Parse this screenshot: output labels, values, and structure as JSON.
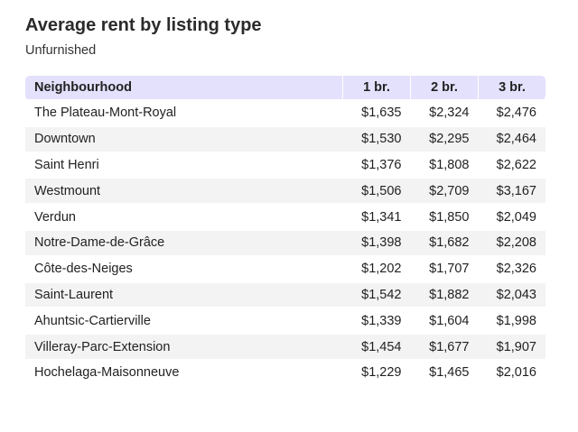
{
  "title": "Average rent by listing type",
  "subtitle": "Unfurnished",
  "chart_data": {
    "type": "table",
    "title": "Average rent by listing type",
    "subtitle": "Unfurnished",
    "columns": [
      "Neighbourhood",
      "1 br.",
      "2 br.",
      "3 br."
    ],
    "rows": [
      [
        "The Plateau-Mont-Royal",
        "$1,635",
        "$2,324",
        "$2,476"
      ],
      [
        "Downtown",
        "$1,530",
        "$2,295",
        "$2,464"
      ],
      [
        "Saint Henri",
        "$1,376",
        "$1,808",
        "$2,622"
      ],
      [
        "Westmount",
        "$1,506",
        "$2,709",
        "$3,167"
      ],
      [
        "Verdun",
        "$1,341",
        "$1,850",
        "$2,049"
      ],
      [
        "Notre-Dame-de-Grâce",
        "$1,398",
        "$1,682",
        "$2,208"
      ],
      [
        "Côte-des-Neiges",
        "$1,202",
        "$1,707",
        "$2,326"
      ],
      [
        "Saint-Laurent",
        "$1,542",
        "$1,882",
        "$2,043"
      ],
      [
        "Ahuntsic-Cartierville",
        "$1,339",
        "$1,604",
        "$1,998"
      ],
      [
        "Villeray-Parc-Extension",
        "$1,454",
        "$1,677",
        "$1,907"
      ],
      [
        "Hochelaga-Maisonneuve",
        "$1,229",
        "$1,465",
        "$2,016"
      ]
    ]
  },
  "colors": {
    "header_background": "#e4e1fd",
    "stripe_background": "#f3f3f3"
  }
}
